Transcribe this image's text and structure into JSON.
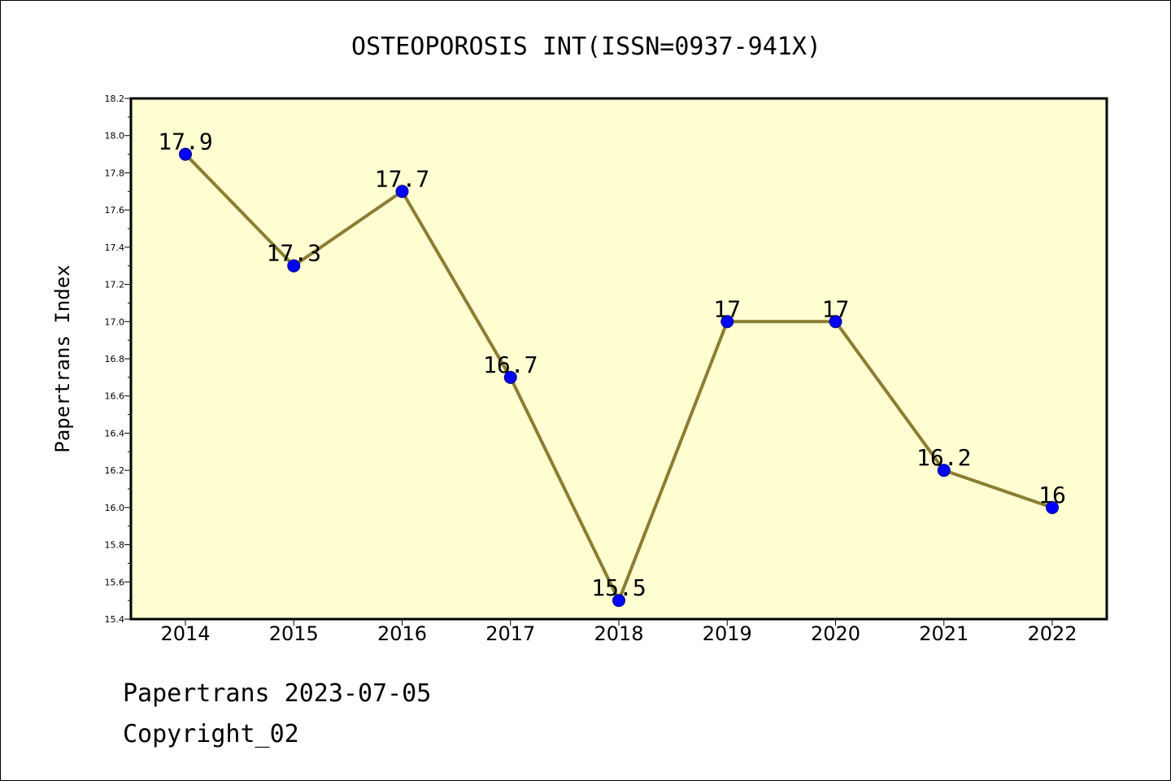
{
  "chart_data": {
    "type": "line",
    "title": "OSTEOPOROSIS INT(ISSN=0937-941X)",
    "xlabel": "",
    "ylabel": "Papertrans Index",
    "categories": [
      "2014",
      "2015",
      "2016",
      "2017",
      "2018",
      "2019",
      "2020",
      "2021",
      "2022"
    ],
    "series": [
      {
        "values": [
          17.9,
          17.3,
          17.7,
          16.7,
          15.5,
          17.0,
          17.0,
          16.2,
          16.0
        ],
        "data_labels": [
          "17.9",
          "17.3",
          "17.7",
          "16.7",
          "15.5",
          "17",
          "17",
          "16.2",
          "16"
        ]
      }
    ],
    "ylim": [
      15.4,
      18.2
    ],
    "y_major_step": 0.2,
    "y_ticks": [
      "15.4",
      "15.6",
      "15.8",
      "16.0",
      "16.2",
      "16.4",
      "16.6",
      "16.8",
      "17.0",
      "17.2",
      "17.4",
      "17.6",
      "17.8",
      "18.0",
      "18.2"
    ],
    "grid": false,
    "legend": "none"
  },
  "colors": {
    "plot_background": "#ffffd2",
    "line": "#8b7d32",
    "marker_fill": "#0000ff",
    "marker_edge": "#000080",
    "frame": "#000000"
  },
  "footer": {
    "line1": "Papertrans 2023-07-05",
    "line2": "Copyright_02"
  }
}
